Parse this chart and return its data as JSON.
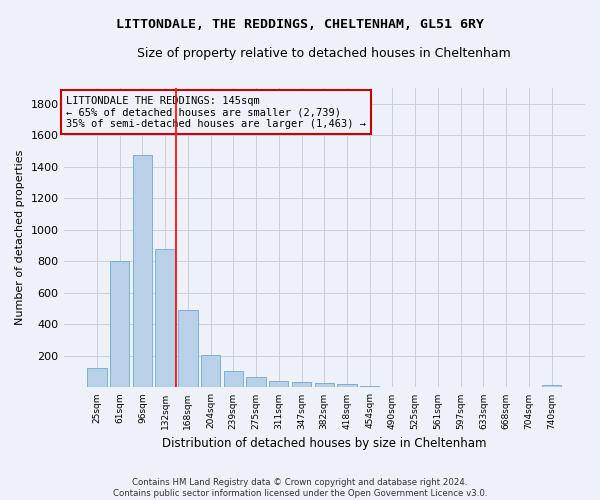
{
  "title": "LITTONDALE, THE REDDINGS, CHELTENHAM, GL51 6RY",
  "subtitle": "Size of property relative to detached houses in Cheltenham",
  "xlabel": "Distribution of detached houses by size in Cheltenham",
  "ylabel": "Number of detached properties",
  "footer_line1": "Contains HM Land Registry data © Crown copyright and database right 2024.",
  "footer_line2": "Contains public sector information licensed under the Open Government Licence v3.0.",
  "categories": [
    "25sqm",
    "61sqm",
    "96sqm",
    "132sqm",
    "168sqm",
    "204sqm",
    "239sqm",
    "275sqm",
    "311sqm",
    "347sqm",
    "382sqm",
    "418sqm",
    "454sqm",
    "490sqm",
    "525sqm",
    "561sqm",
    "597sqm",
    "633sqm",
    "668sqm",
    "704sqm",
    "740sqm"
  ],
  "values": [
    125,
    800,
    1475,
    880,
    490,
    205,
    105,
    65,
    40,
    35,
    25,
    20,
    10,
    5,
    2,
    2,
    2,
    2,
    2,
    2,
    15
  ],
  "bar_color": "#b8d0e8",
  "bar_edge_color": "#6fa8d0",
  "grid_color": "#c8d0dc",
  "background_color": "#eef2f8",
  "annotation_box_color": "#cc0000",
  "annotation_line1": "LITTONDALE THE REDDINGS: 145sqm",
  "annotation_line2": "← 65% of detached houses are smaller (2,739)",
  "annotation_line3": "35% of semi-detached houses are larger (1,463) →",
  "vline_index": 3,
  "ylim": [
    0,
    1900
  ],
  "yticks": [
    0,
    200,
    400,
    600,
    800,
    1000,
    1200,
    1400,
    1600,
    1800
  ]
}
